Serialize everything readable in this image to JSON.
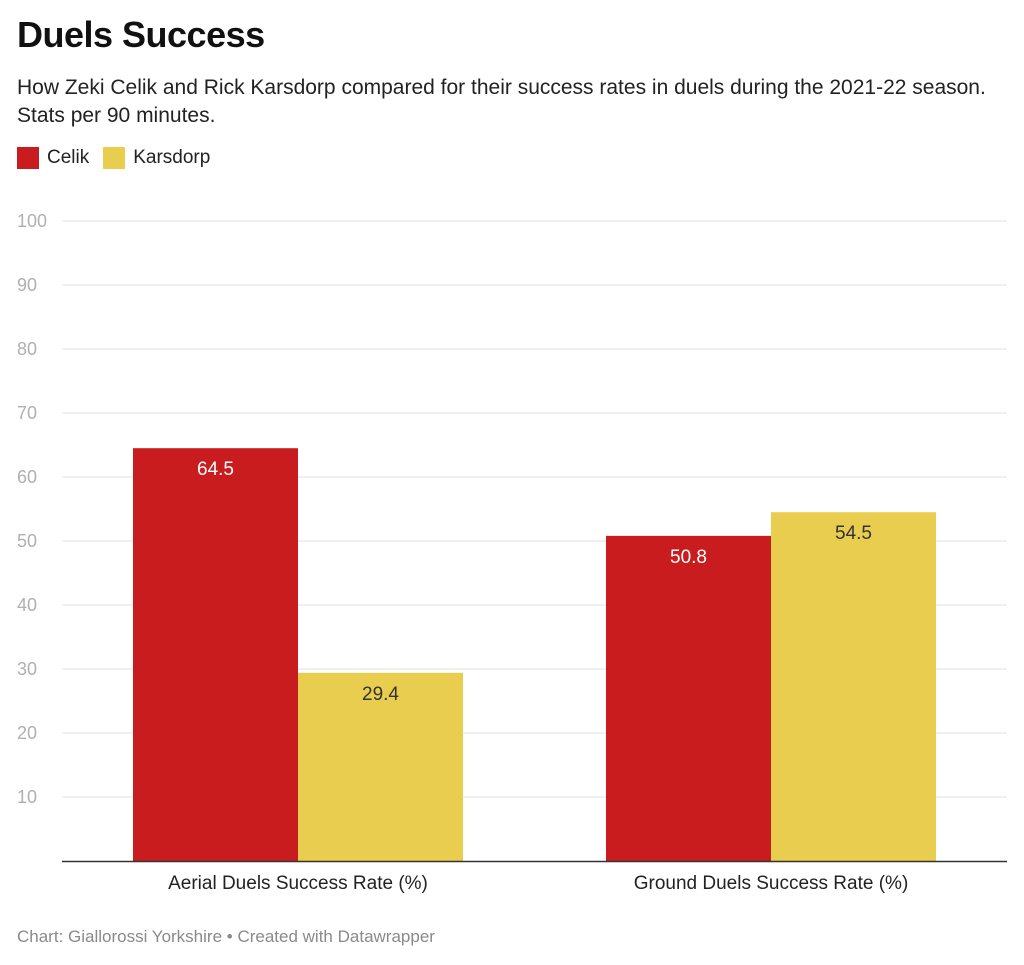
{
  "title": "Duels Success",
  "subtitle": "How Zeki Celik and Rick Karsdorp compared for their success rates in duels during the 2021-22 season. Stats per 90 minutes.",
  "footer": {
    "source_prefix": "Chart: Giallorossi Yorkshire",
    "separator": "•",
    "credit": "Created with Datawrapper"
  },
  "colors": {
    "celik": "#c91c1e",
    "karsdorp": "#e9cd4e",
    "gridline": "#e0e0e0",
    "tick_label": "#b0b0b0",
    "baseline": "#333333"
  },
  "chart_data": {
    "type": "bar",
    "categories": [
      "Aerial Duels Success Rate (%)",
      "Ground Duels Success Rate (%)"
    ],
    "series": [
      {
        "name": "Celik",
        "values": [
          64.5,
          50.8
        ]
      },
      {
        "name": "Karsdorp",
        "values": [
          29.4,
          54.5
        ]
      }
    ],
    "value_labels": [
      [
        "64.5",
        "50.8"
      ],
      [
        "29.4",
        "54.5"
      ]
    ],
    "yticks": [
      10,
      20,
      30,
      40,
      50,
      60,
      70,
      80,
      90,
      100
    ],
    "ylim": [
      0,
      100
    ],
    "grid": true,
    "legend_position": "top-left"
  }
}
